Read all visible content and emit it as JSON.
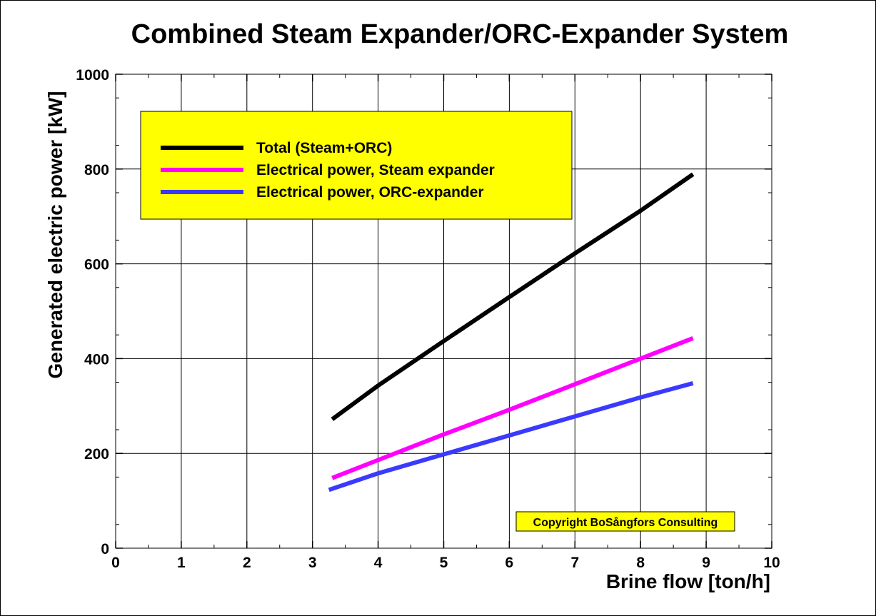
{
  "chart_data": {
    "type": "line",
    "title": "Combined Steam Expander/ORC-Expander System",
    "xlabel": "Brine flow [ton/h]",
    "ylabel": "Generated electric power [kW]",
    "xlim": [
      0,
      10
    ],
    "ylim": [
      0,
      1000
    ],
    "x_ticks": [
      "0",
      "1",
      "2",
      "3",
      "4",
      "5",
      "6",
      "7",
      "8",
      "9",
      "10"
    ],
    "y_ticks": [
      "0",
      "200",
      "400",
      "600",
      "800",
      "1000"
    ],
    "grid": true,
    "legend_position": "top-left",
    "legend_background": "#ffff00",
    "series": [
      {
        "name": "Total (Steam+ORC)",
        "color": "#000000",
        "x": [
          3.3,
          4.0,
          4.5,
          5.0,
          6.0,
          7.0,
          8.0,
          8.8
        ],
        "y": [
          272,
          343,
          390,
          437,
          530,
          622,
          712,
          789
        ]
      },
      {
        "name": "Electrical power, Steam expander",
        "color": "#ff00ff",
        "x": [
          3.3,
          4.0,
          5.0,
          6.0,
          7.0,
          8.0,
          8.8
        ],
        "y": [
          148,
          186,
          240,
          292,
          346,
          400,
          443
        ]
      },
      {
        "name": "Electrical power, ORC-expander",
        "color": "#3a3aff",
        "x": [
          3.25,
          4.0,
          5.0,
          6.0,
          7.0,
          8.0,
          8.8
        ],
        "y": [
          123,
          158,
          198,
          238,
          278,
          318,
          348
        ]
      }
    ],
    "annotations": [
      {
        "text": "Copyright BoSångfors Consulting",
        "background": "#ffff00"
      }
    ]
  }
}
